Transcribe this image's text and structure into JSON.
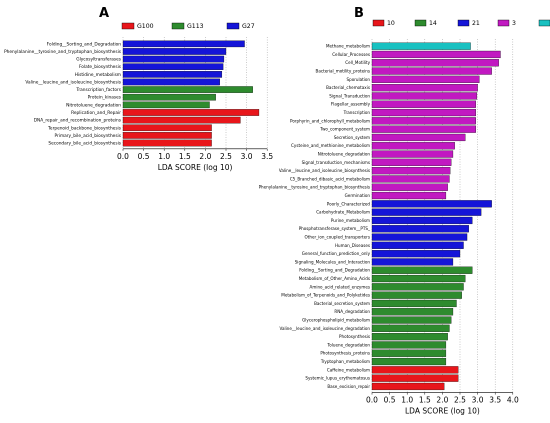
{
  "chart_data": [
    {
      "panel_label": "A",
      "type": "bar",
      "orientation": "horizontal",
      "xlabel": "LDA SCORE (log 10)",
      "xlim": [
        0,
        3.5
      ],
      "xticks": [
        "0.0",
        "0.5",
        "1.0",
        "1.5",
        "2.0",
        "2.5",
        "3.0",
        "3.5"
      ],
      "legend": [
        {
          "name": "G100",
          "color": "#e8161b"
        },
        {
          "name": "G113",
          "color": "#2e8b2e"
        },
        {
          "name": "G27",
          "color": "#1515d8"
        }
      ],
      "bars": [
        {
          "label": "Folding__Sorting_and_Degradation",
          "value": 2.95,
          "group": "G27"
        },
        {
          "label": "Phenylalanine__tyrosine_and_tryptophan_biosynthesis",
          "value": 2.5,
          "group": "G27"
        },
        {
          "label": "Glycosyltransferases",
          "value": 2.45,
          "group": "G27"
        },
        {
          "label": "Folate_biosynthesis",
          "value": 2.43,
          "group": "G27"
        },
        {
          "label": "Histidine_metabolism",
          "value": 2.4,
          "group": "G27"
        },
        {
          "label": "Valine__leucine_and_isoleucine_biosynthesis",
          "value": 2.35,
          "group": "G27"
        },
        {
          "label": "Transcription_factors",
          "value": 3.15,
          "group": "G113"
        },
        {
          "label": "Protein_kinases",
          "value": 2.25,
          "group": "G113"
        },
        {
          "label": "Nitrotoluene_degradation",
          "value": 2.1,
          "group": "G113"
        },
        {
          "label": "Replication_and_Repair",
          "value": 3.3,
          "group": "G100"
        },
        {
          "label": "DNA_repair_and_recombination_proteins",
          "value": 2.85,
          "group": "G100"
        },
        {
          "label": "Terpenoid_backbone_biosynthesis",
          "value": 2.15,
          "group": "G100"
        },
        {
          "label": "Primary_bile_acid_biosynthesis",
          "value": 2.15,
          "group": "G100"
        },
        {
          "label": "Secondary_bile_acid_biosynthesis",
          "value": 2.15,
          "group": "G100"
        }
      ]
    },
    {
      "panel_label": "B",
      "type": "bar",
      "orientation": "horizontal",
      "xlabel": "LDA SCORE (log 10)",
      "xlim": [
        0,
        4.0
      ],
      "xticks": [
        "0.0",
        "0.5",
        "1.0",
        "1.5",
        "2.0",
        "2.5",
        "3.0",
        "3.5",
        "4.0"
      ],
      "legend": [
        {
          "name": "10",
          "color": "#e8161b"
        },
        {
          "name": "14",
          "color": "#2e8b2e"
        },
        {
          "name": "21",
          "color": "#1515d8"
        },
        {
          "name": "3",
          "color": "#c119c1"
        },
        {
          "name": "5",
          "color": "#19c1c1"
        }
      ],
      "bars": [
        {
          "label": "Methane_metabolism",
          "value": 2.8,
          "group": "5"
        },
        {
          "label": "Cellular_Processes",
          "value": 3.65,
          "group": "3"
        },
        {
          "label": "Cell_Motility",
          "value": 3.6,
          "group": "3"
        },
        {
          "label": "Bacterial_motility_proteins",
          "value": 3.4,
          "group": "3"
        },
        {
          "label": "Sporulation",
          "value": 3.05,
          "group": "3"
        },
        {
          "label": "Bacterial_chemotaxis",
          "value": 3.0,
          "group": "3"
        },
        {
          "label": "Signal_Transduction",
          "value": 2.98,
          "group": "3"
        },
        {
          "label": "Flagellar_assembly",
          "value": 2.95,
          "group": "3"
        },
        {
          "label": "Transcription",
          "value": 2.95,
          "group": "3"
        },
        {
          "label": "Porphyrin_and_chlorophyll_metabolism",
          "value": 2.95,
          "group": "3"
        },
        {
          "label": "Two_component_system",
          "value": 2.95,
          "group": "3"
        },
        {
          "label": "Secretion_system",
          "value": 2.65,
          "group": "3"
        },
        {
          "label": "Cysteine_and_methionine_metabolism",
          "value": 2.35,
          "group": "3"
        },
        {
          "label": "Nitrotoluene_degradation",
          "value": 2.3,
          "group": "3"
        },
        {
          "label": "Signal_transduction_mechanisms",
          "value": 2.25,
          "group": "3"
        },
        {
          "label": "Valine__leucine_and_isoleucine_biosynthesis",
          "value": 2.22,
          "group": "3"
        },
        {
          "label": "C5_Branched_dibasic_acid_metabolism",
          "value": 2.2,
          "group": "3"
        },
        {
          "label": "Phenylalanine__tyrosine_and_tryptophan_biosynthesis",
          "value": 2.15,
          "group": "3"
        },
        {
          "label": "Germination",
          "value": 2.1,
          "group": "3"
        },
        {
          "label": "Poorly_Characterized",
          "value": 3.4,
          "group": "21"
        },
        {
          "label": "Carbohydrate_Metabolism",
          "value": 3.1,
          "group": "21"
        },
        {
          "label": "Purine_metabolism",
          "value": 2.85,
          "group": "21"
        },
        {
          "label": "Phosphotransferase_system__PTS_",
          "value": 2.75,
          "group": "21"
        },
        {
          "label": "Other_ion_coupled_transporters",
          "value": 2.7,
          "group": "21"
        },
        {
          "label": "Human_Diseases",
          "value": 2.6,
          "group": "21"
        },
        {
          "label": "General_function_prediction_only",
          "value": 2.5,
          "group": "21"
        },
        {
          "label": "Signaling_Molecules_and_Interaction",
          "value": 2.3,
          "group": "21"
        },
        {
          "label": "Folding__Sorting_and_Degradation",
          "value": 2.85,
          "group": "14"
        },
        {
          "label": "Metabolism_of_Other_Amino_Acids",
          "value": 2.65,
          "group": "14"
        },
        {
          "label": "Amino_acid_related_enzymes",
          "value": 2.6,
          "group": "14"
        },
        {
          "label": "Metabolism_of_Terpenoids_and_Polyketides",
          "value": 2.55,
          "group": "14"
        },
        {
          "label": "Bacterial_secretion_system",
          "value": 2.4,
          "group": "14"
        },
        {
          "label": "RNA_degradation",
          "value": 2.3,
          "group": "14"
        },
        {
          "label": "Glycerophospholipid_metabolism",
          "value": 2.25,
          "group": "14"
        },
        {
          "label": "Valine__leucine_and_isoleucine_degradation",
          "value": 2.2,
          "group": "14"
        },
        {
          "label": "Photosynthesis",
          "value": 2.15,
          "group": "14"
        },
        {
          "label": "Toluene_degradation",
          "value": 2.1,
          "group": "14"
        },
        {
          "label": "Photosynthesis_proteins",
          "value": 2.1,
          "group": "14"
        },
        {
          "label": "Tryptophan_metabolism",
          "value": 2.1,
          "group": "14"
        },
        {
          "label": "Caffeine_metabolism",
          "value": 2.45,
          "group": "10"
        },
        {
          "label": "Systemic_lupus_erythematosus",
          "value": 2.45,
          "group": "10"
        },
        {
          "label": "Base_excision_repair",
          "value": 2.05,
          "group": "10"
        }
      ]
    }
  ]
}
